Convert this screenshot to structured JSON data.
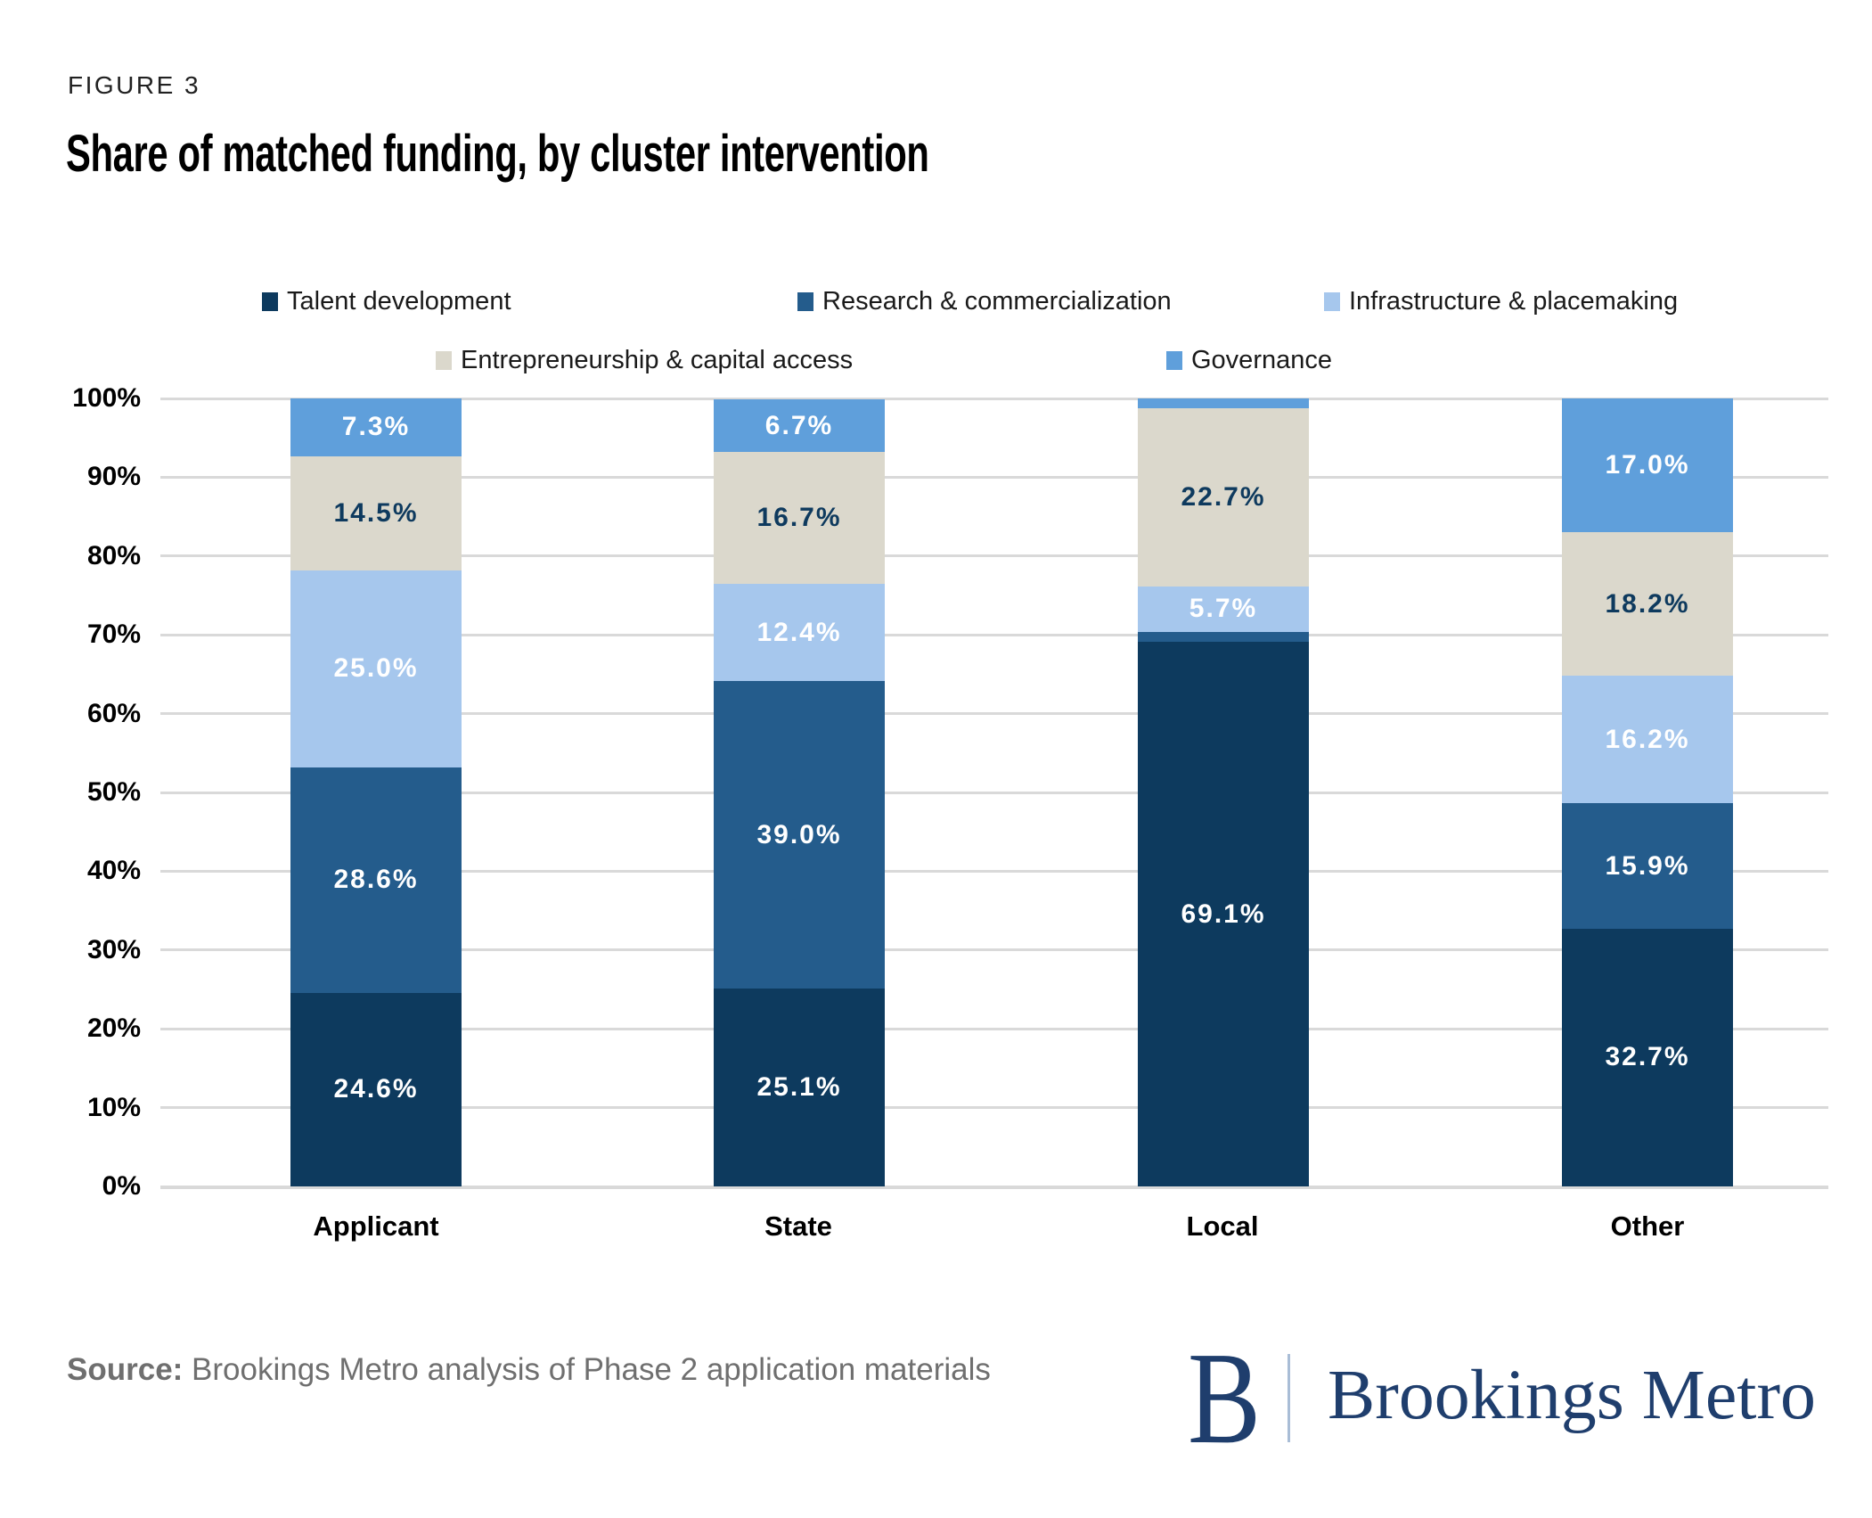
{
  "figure_label": "FIGURE 3",
  "title": "Share of matched funding, by cluster intervention",
  "source": {
    "prefix": "Source:",
    "text": " Brookings Metro analysis of Phase 2 application materials"
  },
  "logo": {
    "mark": "B",
    "text": "Brookings Metro",
    "navy": "#1F3E6D",
    "divider_color": "#A9BDD6"
  },
  "chart_data": {
    "type": "bar",
    "subtype": "stacked-100pct-column",
    "categories": [
      "Applicant",
      "State",
      "Local",
      "Other"
    ],
    "series": [
      {
        "name": "Talent development",
        "color": "#0D3A5E",
        "label_color": "#FFFFFF",
        "values": [
          24.6,
          25.1,
          69.1,
          32.7
        ],
        "labels": [
          "24.6%",
          "25.1%",
          "69.1%",
          "32.7%"
        ]
      },
      {
        "name": "Research & commercialization",
        "color": "#245C8C",
        "label_color": "#FFFFFF",
        "values": [
          28.6,
          39.0,
          1.3,
          15.9
        ],
        "labels": [
          "28.6%",
          "39.0%",
          "",
          "15.9%"
        ]
      },
      {
        "name": "Infrastructure & placemaking",
        "color": "#A6C7ED",
        "label_color": "#FFFFFF",
        "values": [
          25.0,
          12.4,
          5.7,
          16.2
        ],
        "labels": [
          "25.0%",
          "12.4%",
          "5.7%",
          "16.2%"
        ]
      },
      {
        "name": "Entrepreneurship & capital access",
        "color": "#DBD8CC",
        "label_color": "#0E3A5E",
        "values": [
          14.5,
          16.7,
          22.7,
          18.2
        ],
        "labels": [
          "14.5%",
          "16.7%",
          "22.7%",
          "18.2%"
        ]
      },
      {
        "name": "Governance",
        "color": "#5F9FDB",
        "label_color": "#FFFFFF",
        "values": [
          7.3,
          6.7,
          1.2,
          17.0
        ],
        "labels": [
          "7.3%",
          "6.7%",
          "",
          "17.0%"
        ]
      }
    ],
    "y_axis": {
      "min": 0,
      "max": 100,
      "tick_step": 10,
      "ticks": [
        "0%",
        "10%",
        "20%",
        "30%",
        "40%",
        "50%",
        "60%",
        "70%",
        "80%",
        "90%",
        "100%"
      ]
    },
    "grid": true,
    "legend_position": "top"
  }
}
